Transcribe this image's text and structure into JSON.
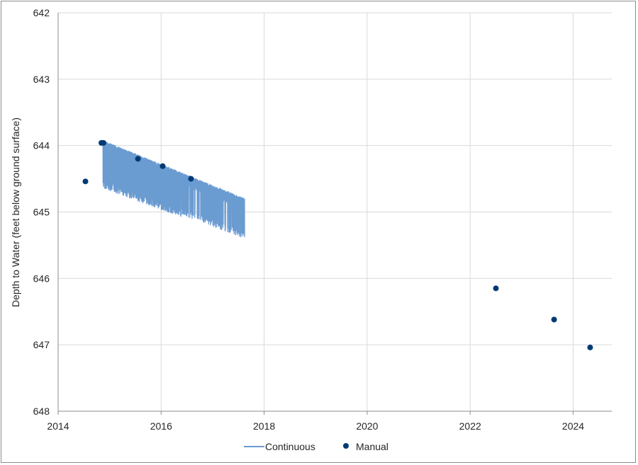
{
  "chart_data": {
    "type": "scatter",
    "title": "",
    "xlabel": "",
    "ylabel": "Depth to Water (feet below ground surface)",
    "xlim": [
      2014,
      2024.75
    ],
    "ylim": [
      648,
      642
    ],
    "y_inverted": true,
    "x_ticks": [
      "2014",
      "2016",
      "2018",
      "2020",
      "2022",
      "2024"
    ],
    "y_ticks": [
      "642",
      "643",
      "644",
      "645",
      "646",
      "647",
      "648"
    ],
    "grid": true,
    "legend_position": "bottom",
    "series": [
      {
        "name": "Continuous",
        "kind": "line",
        "color": "#6a9bd1",
        "x_start": 2014.87,
        "x_end": 2017.62,
        "upper_start": 643.95,
        "upper_end": 644.82,
        "lower_start": 644.55,
        "lower_end": 645.35
      },
      {
        "name": "Manual",
        "kind": "markers",
        "color": "#003a75",
        "points": [
          {
            "x": 2014.53,
            "y": 644.54
          },
          {
            "x": 2014.84,
            "y": 643.96
          },
          {
            "x": 2014.88,
            "y": 643.96
          },
          {
            "x": 2015.55,
            "y": 644.2
          },
          {
            "x": 2016.03,
            "y": 644.31
          },
          {
            "x": 2016.58,
            "y": 644.5
          },
          {
            "x": 2022.5,
            "y": 646.15
          },
          {
            "x": 2023.63,
            "y": 646.62
          },
          {
            "x": 2024.33,
            "y": 647.04
          }
        ]
      }
    ]
  }
}
